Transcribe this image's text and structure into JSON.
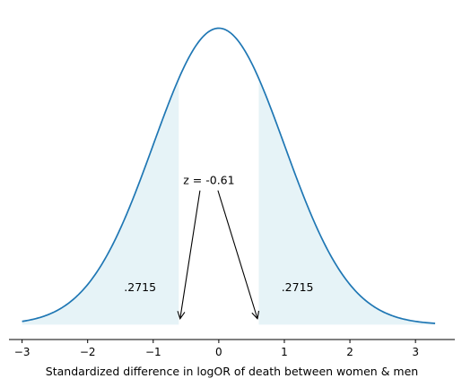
{
  "chart_data": {
    "type": "line",
    "title": "",
    "xlabel": "Standardized difference in logOR of death between women & men",
    "ylabel": "",
    "xlim": [
      -3.2,
      3.6
    ],
    "ylim": [
      -0.02,
      0.42
    ],
    "x_ticks": [
      -3,
      -2,
      -1,
      0,
      1,
      2,
      3
    ],
    "x_tick_labels": [
      "−3",
      "−2",
      "−1",
      "0",
      "1",
      "2",
      "3"
    ],
    "curve": {
      "distribution": "standard normal density",
      "x_range": [
        -3.0,
        3.3
      ],
      "line_color": "#1f77b4"
    },
    "shaded_tails": [
      {
        "from": -3.0,
        "to": -0.61,
        "area_label": ".2715",
        "label_x": -1.2,
        "label_y": 0.045
      },
      {
        "from": 0.61,
        "to": 3.3,
        "area_label": ".2715",
        "label_x": 1.2,
        "label_y": 0.045
      }
    ],
    "fill_color": "#add8e6",
    "annotation": {
      "text": "z = -0.61",
      "text_x": -0.15,
      "text_y": 0.195,
      "arrows_to": [
        {
          "x": -0.59,
          "y": 0.008
        },
        {
          "x": 0.59,
          "y": 0.008
        }
      ]
    },
    "grid": false,
    "legend": "none"
  }
}
